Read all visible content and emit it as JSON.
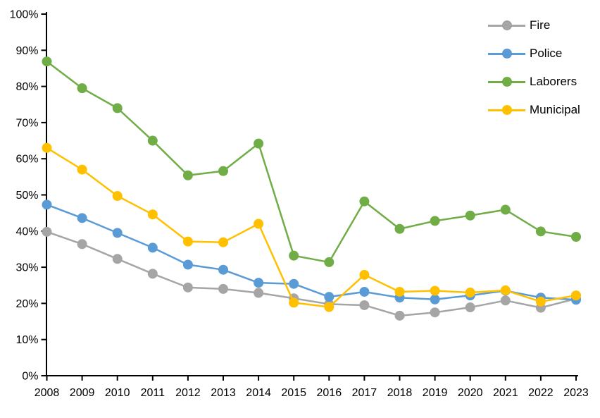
{
  "chart_data": {
    "type": "line",
    "title": "",
    "xlabel": "",
    "ylabel": "",
    "grid": false,
    "legend_position": "top-right",
    "axis_color": "#000000",
    "background_color": "#ffffff",
    "categories": [
      "2008",
      "2009",
      "2010",
      "2011",
      "2012",
      "2013",
      "2014",
      "2015",
      "2016",
      "2017",
      "2018",
      "2019",
      "2020",
      "2021",
      "2022",
      "2023"
    ],
    "ylim": [
      0,
      100
    ],
    "y_ticks": [
      0,
      10,
      20,
      30,
      40,
      50,
      60,
      70,
      80,
      90,
      100
    ],
    "y_tick_labels": [
      "0%",
      "10%",
      "20%",
      "30%",
      "40%",
      "50%",
      "60%",
      "70%",
      "80%",
      "90%",
      "100%"
    ],
    "series": [
      {
        "name": "Fire",
        "color": "#A5A5A5",
        "values": [
          39.8,
          36.4,
          32.3,
          28.2,
          24.4,
          24.0,
          22.9,
          21.4,
          19.8,
          19.5,
          16.6,
          17.5,
          18.9,
          20.8,
          18.8,
          21.3
        ]
      },
      {
        "name": "Police",
        "color": "#5B9BD5",
        "values": [
          47.3,
          43.6,
          39.5,
          35.4,
          30.7,
          29.3,
          25.7,
          25.4,
          21.8,
          23.2,
          21.6,
          21.1,
          22.2,
          23.5,
          21.6,
          21.0
        ]
      },
      {
        "name": "Laborers",
        "color": "#70AD47",
        "values": [
          86.9,
          79.5,
          74.0,
          65.0,
          55.4,
          56.6,
          64.2,
          33.2,
          31.4,
          48.2,
          40.6,
          42.8,
          44.3,
          45.9,
          39.9,
          38.4
        ]
      },
      {
        "name": "Municipal",
        "color": "#FFC000",
        "values": [
          63.0,
          57.0,
          49.7,
          44.6,
          37.1,
          36.9,
          42.0,
          20.2,
          19.0,
          27.9,
          23.2,
          23.5,
          23.0,
          23.6,
          20.5,
          22.2
        ]
      }
    ]
  }
}
